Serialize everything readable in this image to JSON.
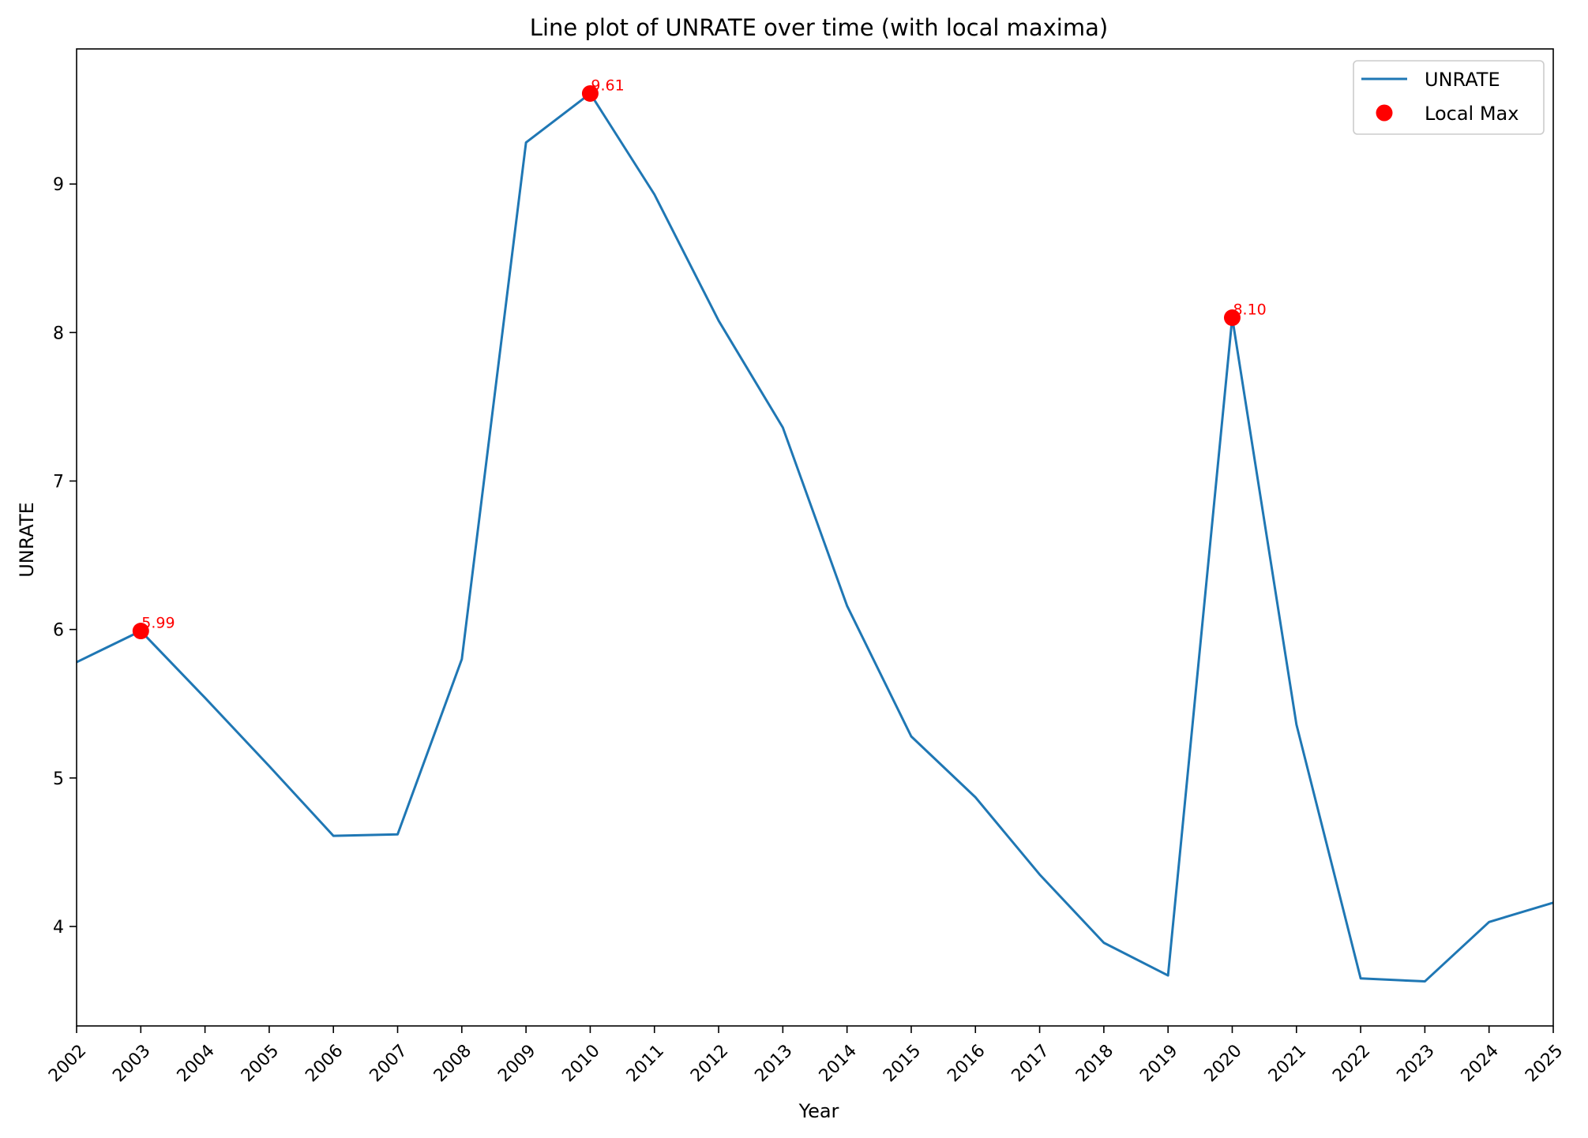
{
  "chart_data": {
    "type": "line",
    "title": "Line plot of UNRATE over time (with local maxima)",
    "xlabel": "Year",
    "ylabel": "UNRATE",
    "xlim": [
      2002,
      2025
    ],
    "ylim": [
      3.33,
      9.91
    ],
    "xticks": [
      "2002",
      "2003",
      "2004",
      "2005",
      "2006",
      "2007",
      "2008",
      "2009",
      "2010",
      "2011",
      "2012",
      "2013",
      "2014",
      "2015",
      "2016",
      "2017",
      "2018",
      "2019",
      "2020",
      "2021",
      "2022",
      "2023",
      "2024",
      "2025"
    ],
    "yticks": [
      4,
      5,
      6,
      7,
      8,
      9
    ],
    "grid": false,
    "legend_position": "top-right",
    "series": [
      {
        "name": "UNRATE",
        "color": "#1f77b4",
        "x": [
          2002,
          2003,
          2004,
          2005,
          2006,
          2007,
          2008,
          2009,
          2010,
          2011,
          2012,
          2013,
          2014,
          2015,
          2016,
          2017,
          2018,
          2019,
          2020,
          2021,
          2022,
          2023,
          2024,
          2025
        ],
        "values": [
          5.78,
          5.99,
          5.54,
          5.08,
          4.61,
          4.62,
          5.8,
          9.28,
          9.61,
          8.93,
          8.08,
          7.36,
          6.16,
          5.28,
          4.87,
          4.35,
          3.89,
          3.67,
          8.1,
          5.36,
          3.65,
          3.63,
          4.03,
          4.16
        ]
      }
    ],
    "markers": {
      "name": "Local Max",
      "color": "#ff0000",
      "points": [
        {
          "x": 2003,
          "y": 5.99,
          "label": "5.99"
        },
        {
          "x": 2010,
          "y": 9.61,
          "label": "9.61"
        },
        {
          "x": 2020,
          "y": 8.1,
          "label": "8.10"
        }
      ]
    }
  }
}
